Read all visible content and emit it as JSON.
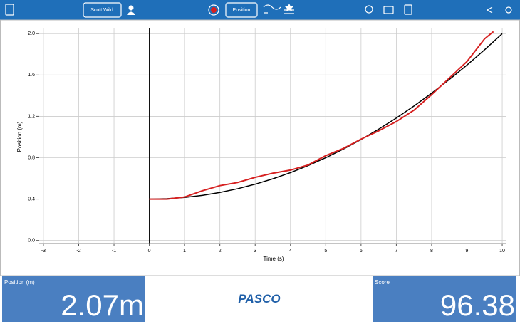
{
  "toolbar": {
    "user": "Scott Wild",
    "mode": "Position"
  },
  "chart_data": {
    "type": "line",
    "xlabel": "Time (s)",
    "ylabel": "Position (m)",
    "xlim": [
      -3.12,
      10.1
    ],
    "ylim": [
      -0.03,
      2.05
    ],
    "xticks": [
      -3,
      -2,
      -1,
      0,
      1,
      2,
      3,
      4,
      5,
      6,
      7,
      8,
      9,
      10
    ],
    "yticks": [
      {
        "value": 0,
        "label": "0.0"
      },
      {
        "value": 0.4,
        "label": "0.4"
      },
      {
        "value": 0.8,
        "label": "0.8"
      },
      {
        "value": 1.2,
        "label": "1.2"
      },
      {
        "value": 1.6,
        "label": "1.6"
      },
      {
        "value": 2,
        "label": "2.0"
      }
    ],
    "grid": true,
    "series": [
      {
        "color": "#000000",
        "x": [
          0,
          0.5,
          1,
          1.5,
          2,
          2.5,
          3,
          3.5,
          4,
          4.5,
          5,
          5.5,
          6,
          6.5,
          7,
          7.5,
          8,
          8.5,
          9,
          9.5,
          10
        ],
        "values": [
          0.4,
          0.404,
          0.416,
          0.436,
          0.464,
          0.5,
          0.544,
          0.596,
          0.656,
          0.724,
          0.8,
          0.884,
          0.976,
          1.076,
          1.184,
          1.3,
          1.424,
          1.556,
          1.696,
          1.844,
          2.0
        ]
      },
      {
        "color": "#d62020",
        "x": [
          0,
          0.5,
          1,
          1.5,
          2,
          2.5,
          3,
          3.5,
          4,
          4.5,
          5,
          5.5,
          6,
          6.5,
          7,
          7.5,
          8,
          8.5,
          9,
          9.5,
          9.75
        ],
        "values": [
          0.4,
          0.4,
          0.42,
          0.48,
          0.53,
          0.56,
          0.61,
          0.65,
          0.68,
          0.73,
          0.82,
          0.89,
          0.98,
          1.06,
          1.15,
          1.26,
          1.41,
          1.57,
          1.73,
          1.95,
          2.02
        ]
      }
    ]
  },
  "panels": {
    "position": {
      "label": "Position (m)",
      "value": "2.07m"
    },
    "brand": "PASCO",
    "score": {
      "label": "Score",
      "value": "96.38"
    }
  }
}
